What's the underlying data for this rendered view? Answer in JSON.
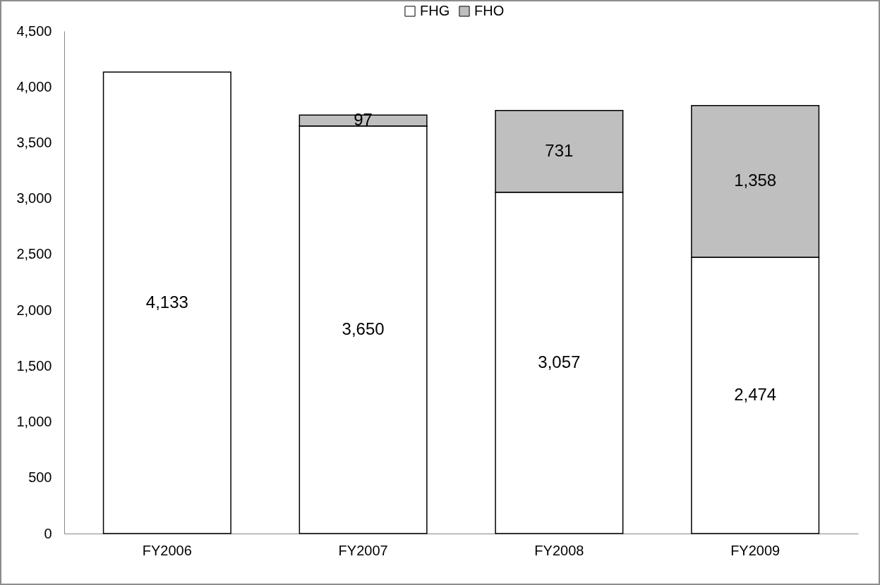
{
  "chart_data": {
    "type": "bar",
    "categories": [
      "FY2006",
      "FY2007",
      "FY2008",
      "FY2009"
    ],
    "series": [
      {
        "name": "FHG",
        "color": "#ffffff",
        "values": [
          4133,
          3650,
          3057,
          2474
        ],
        "value_labels": [
          "4,133",
          "3,650",
          "3,057",
          "2,474"
        ]
      },
      {
        "name": "FHO",
        "color": "#bfbfbf",
        "values": [
          null,
          97,
          731,
          1358
        ],
        "value_labels": [
          null,
          "97",
          "731",
          "1,358"
        ]
      }
    ],
    "stacked": true,
    "ylim": [
      0,
      4500
    ],
    "yticks": [
      0,
      500,
      {
        "value": 1000,
        "label": "1,000"
      },
      {
        "value": 1500,
        "label": "1,500"
      },
      {
        "value": 2000,
        "label": "2,000"
      },
      {
        "value": 2500,
        "label": "2,500"
      },
      {
        "value": 3000,
        "label": "3,000"
      },
      {
        "value": 3500,
        "label": "3,500"
      },
      {
        "value": 4000,
        "label": "4,000"
      },
      {
        "value": 4500,
        "label": "4,500"
      }
    ],
    "legend": "top"
  }
}
